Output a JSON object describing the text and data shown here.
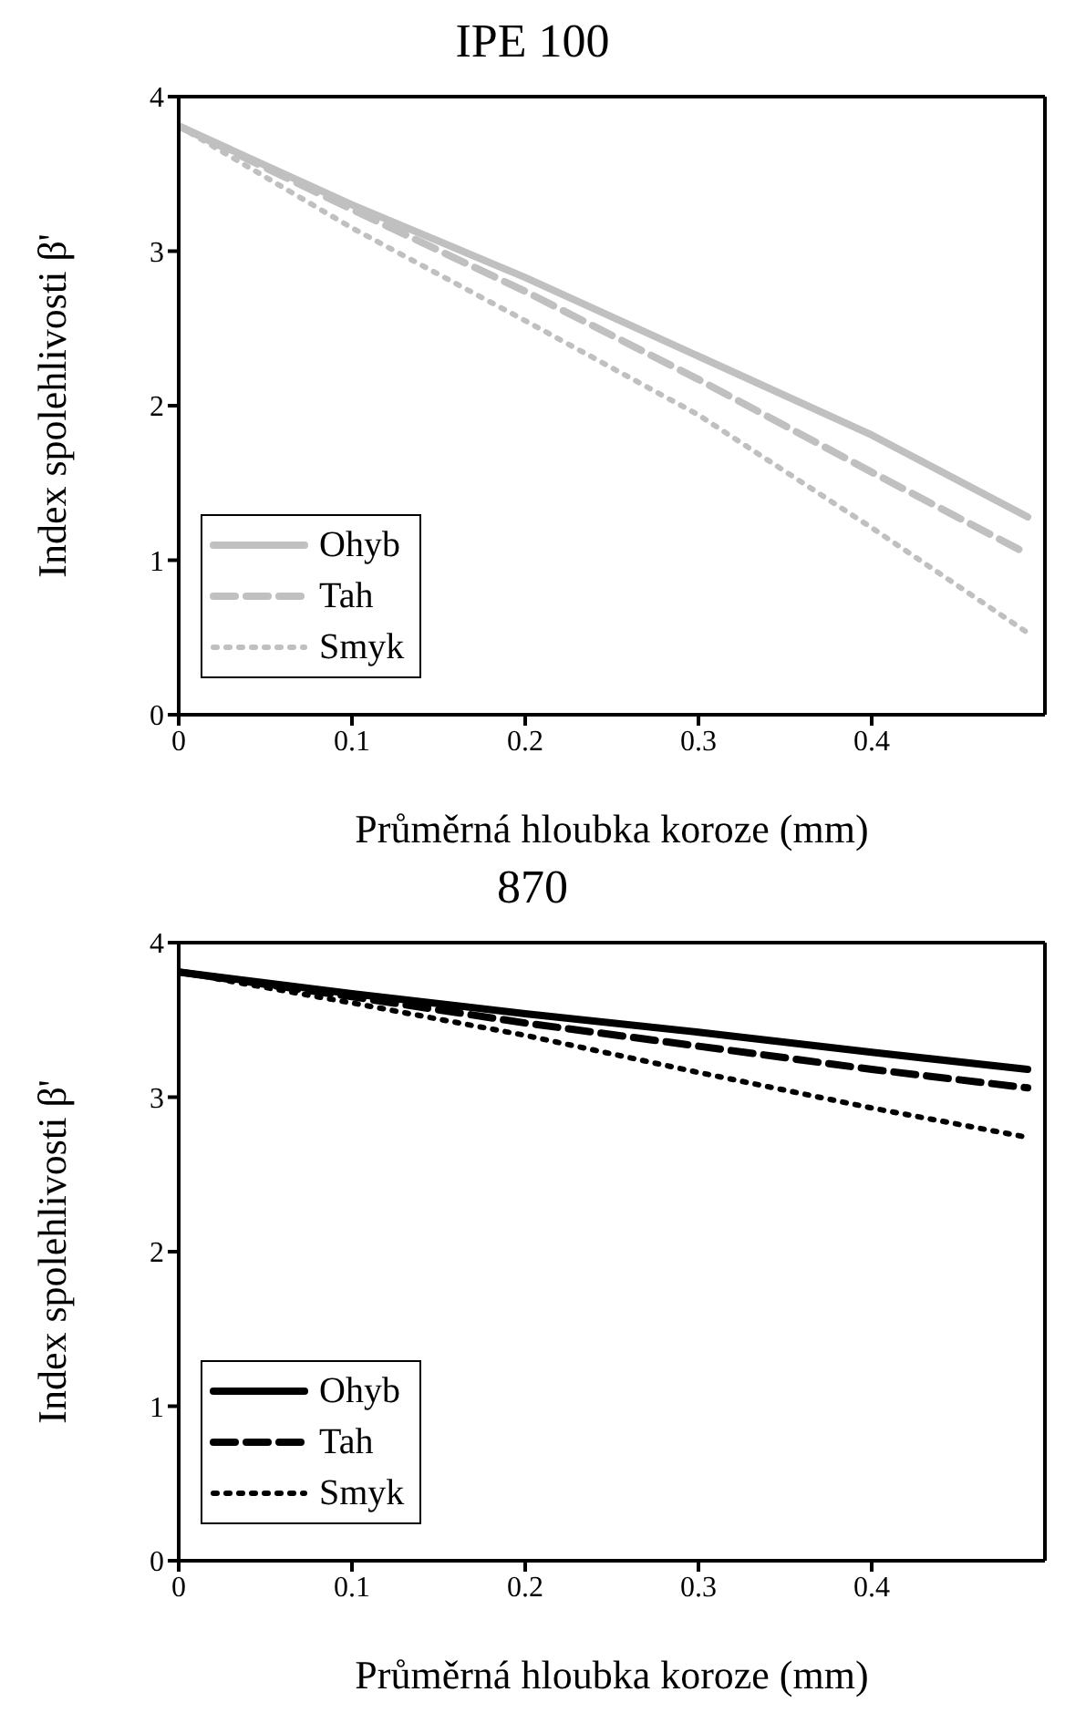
{
  "chart_data": [
    {
      "type": "line",
      "title": "IPE 100",
      "xlabel": "Průměrná hloubka koroze (mm)",
      "ylabel": "Index spolehlivosti β'",
      "x": [
        0,
        0.1,
        0.2,
        0.3,
        0.4,
        0.49
      ],
      "xlim": [
        0,
        0.5
      ],
      "ylim": [
        0,
        4
      ],
      "xticks": [
        0,
        0.1,
        0.2,
        0.3,
        0.4
      ],
      "yticks": [
        0,
        1,
        2,
        3,
        4
      ],
      "grid": false,
      "legend": "bottom left",
      "series": [
        {
          "name": "Ohyb",
          "color": "#c0c0c0",
          "line_style": "solid",
          "values": [
            3.81,
            3.3,
            2.83,
            2.32,
            1.81,
            1.28
          ]
        },
        {
          "name": "Tah",
          "color": "#c0c0c0",
          "line_style": "dashed",
          "values": [
            3.81,
            3.27,
            2.74,
            2.17,
            1.57,
            1.04
          ]
        },
        {
          "name": "Smyk",
          "color": "#c0c0c0",
          "line_style": "dotted",
          "values": [
            3.81,
            3.15,
            2.55,
            1.94,
            1.21,
            0.53
          ]
        }
      ]
    },
    {
      "type": "line",
      "title": "870",
      "xlabel": "Průměrná hloubka koroze (mm)",
      "ylabel": "Index spolehlivosti β'",
      "x": [
        0,
        0.1,
        0.2,
        0.3,
        0.4,
        0.49
      ],
      "xlim": [
        0,
        0.5
      ],
      "ylim": [
        0,
        4
      ],
      "xticks": [
        0,
        0.1,
        0.2,
        0.3,
        0.4
      ],
      "yticks": [
        0,
        1,
        2,
        3,
        4
      ],
      "grid": false,
      "legend": "bottom left",
      "series": [
        {
          "name": "Ohyb",
          "color": "#000000",
          "line_style": "solid",
          "values": [
            3.81,
            3.67,
            3.54,
            3.42,
            3.29,
            3.18
          ]
        },
        {
          "name": "Tah",
          "color": "#000000",
          "line_style": "dashed",
          "values": [
            3.81,
            3.65,
            3.48,
            3.33,
            3.18,
            3.06
          ]
        },
        {
          "name": "Smyk",
          "color": "#000000",
          "line_style": "dotted",
          "values": [
            3.81,
            3.61,
            3.4,
            3.16,
            2.93,
            2.74
          ]
        }
      ]
    }
  ]
}
